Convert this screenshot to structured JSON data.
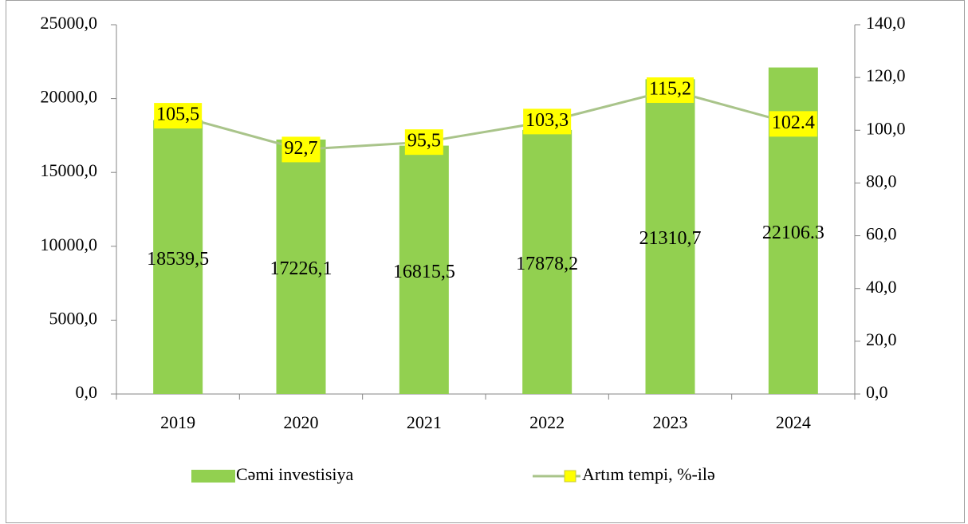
{
  "chart_data": {
    "type": "bar",
    "categories": [
      "2019",
      "2020",
      "2021",
      "2022",
      "2023",
      "2024"
    ],
    "series": [
      {
        "name": "Cəmi investisiya",
        "type": "bar",
        "color": "#92d050",
        "values": [
          18539.5,
          17226.1,
          16815.5,
          17878.2,
          21310.7,
          22106.3
        ],
        "value_labels": [
          "18539,5",
          "17226,1",
          "16815,5",
          "17878,2",
          "21310,7",
          "22106.3"
        ]
      },
      {
        "name": "Artım tempi, %-ilə",
        "type": "line",
        "axis": "y2",
        "color": "#a9c48a",
        "marker_color": "#ffff00",
        "label_background": "#ffff00",
        "values": [
          105.5,
          92.7,
          95.5,
          103.3,
          115.2,
          102.4
        ],
        "value_labels": [
          "105,5",
          "92,7",
          "95,5",
          "103,3",
          "115,2",
          "102.4"
        ]
      }
    ],
    "ylim": [
      0,
      25000
    ],
    "yticks": [
      {
        "value": 0,
        "label": "0,0"
      },
      {
        "value": 5000,
        "label": "5000,0"
      },
      {
        "value": 10000,
        "label": "10000,0"
      },
      {
        "value": 15000,
        "label": "15000,0"
      },
      {
        "value": 20000,
        "label": "20000,0"
      },
      {
        "value": 25000,
        "label": "25000,0"
      }
    ],
    "y2lim": [
      0,
      140
    ],
    "y2ticks": [
      {
        "value": 0,
        "label": "0,0"
      },
      {
        "value": 20,
        "label": "20,0"
      },
      {
        "value": 40,
        "label": "40,0"
      },
      {
        "value": 60,
        "label": "60,0"
      },
      {
        "value": 80,
        "label": "80,0"
      },
      {
        "value": 100,
        "label": "100,0"
      },
      {
        "value": 120,
        "label": "120,0"
      },
      {
        "value": 140,
        "label": "140,0"
      }
    ],
    "grid": false,
    "legend": "bottom"
  }
}
